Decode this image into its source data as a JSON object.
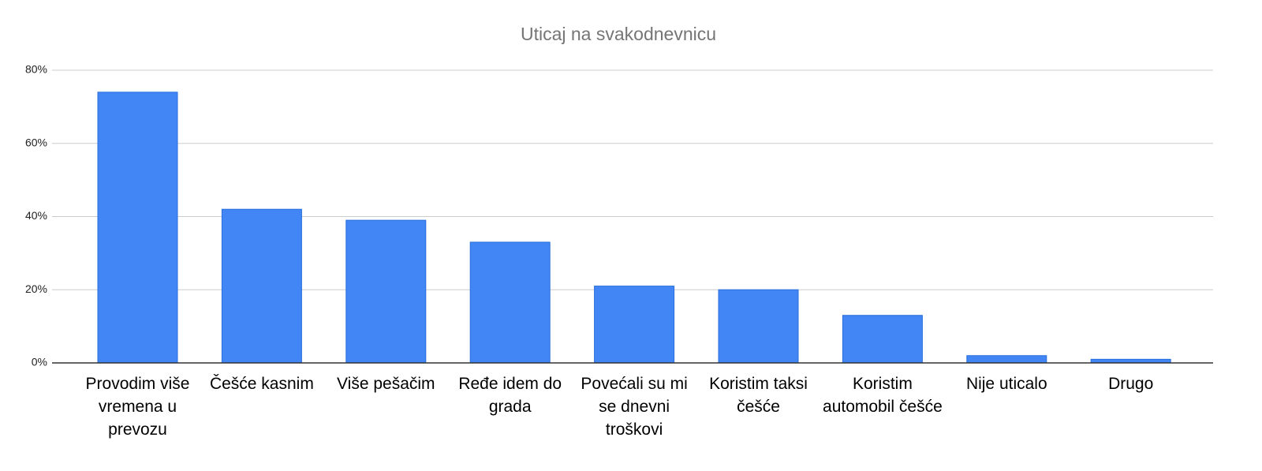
{
  "chart_data": {
    "type": "bar",
    "title": "Uticaj na svakodnevnicu",
    "categories": [
      "Provodim više vremena u prevozu",
      "Češće kasnim",
      "Više pešačim",
      "Ređe idem do grada",
      "Povećali su mi se dnevni troškovi",
      "Koristim taksi češće",
      "Koristim automobil češće",
      "Nije uticalo",
      "Drugo"
    ],
    "values": [
      74,
      42,
      39,
      33,
      21,
      20,
      13,
      2,
      1
    ],
    "color": "#4285f4",
    "ylim": [
      0,
      80
    ],
    "yticks": [
      {
        "value": 0,
        "label": "0%"
      },
      {
        "value": 20,
        "label": "20%"
      },
      {
        "value": 40,
        "label": "40%"
      },
      {
        "value": 60,
        "label": "60%"
      },
      {
        "value": 80,
        "label": "80%"
      }
    ],
    "grid": true
  }
}
